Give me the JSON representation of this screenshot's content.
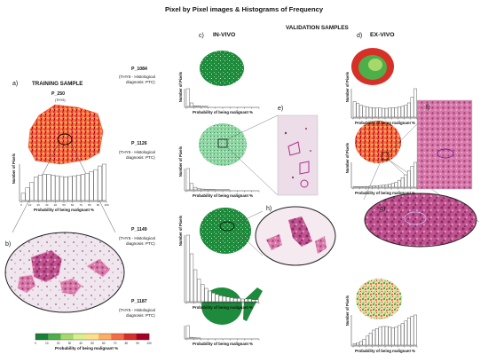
{
  "figure": {
    "title": "Pixel by Pixel images & Histograms of Frequency",
    "validation_title": "VALIDATION SAMPLES",
    "training_title": "TRAINING SAMPLE",
    "col_invivo": "IN-VIVO",
    "col_exvivo": "EX-VIVO",
    "panel_a": "a)",
    "panel_b": "b)",
    "panel_c": "c)",
    "panel_d": "d)",
    "panel_e": "e)",
    "panel_f": "f)",
    "panel_g": "g)",
    "panel_h": "h)",
    "ylabel": "Number of Pixels",
    "xlabel": "Probability of being malignant %",
    "colorbar_label": "Probability of being malignant %",
    "colorbar_colors": [
      "#1a7f37",
      "#4daf4a",
      "#a6d96a",
      "#d9ef8b",
      "#fee08b",
      "#fdae61",
      "#f46d43",
      "#d73027",
      "#a50026"
    ]
  },
  "samples": [
    {
      "id": "P_250",
      "diag": "(THY5)"
    },
    {
      "id": "P_1084",
      "diag_line1": "(THY5 - Histological",
      "diag_line2": "diagnosis: PTC)"
    },
    {
      "id": "P_1126",
      "diag_line1": "(THY5 - Histological",
      "diag_line2": "diagnosis: PTC)"
    },
    {
      "id": "P_1149",
      "diag_line1": "(THY5 - Histological",
      "diag_line2": "diagnosis: PTC)"
    },
    {
      "id": "P_1187",
      "diag_line1": "(THY5 - Histological",
      "diag_line2": "diagnosis: PTC)"
    }
  ],
  "chart_data": [
    {
      "type": "bar",
      "name": "training-P_250",
      "xlabel": "Probability of being malignant %",
      "ylabel": "Number of Pixels",
      "xlim": [
        0,
        100
      ],
      "x_ticks": [
        "0",
        "10",
        "20",
        "30",
        "40",
        "50",
        "60",
        "70",
        "80",
        "90",
        "100"
      ],
      "values": [
        0.2,
        0.35,
        0.5,
        0.65,
        0.7,
        0.72,
        0.72,
        0.7,
        0.68,
        0.66,
        0.65,
        0.66,
        0.68,
        0.7,
        0.72,
        0.75,
        0.8,
        0.85,
        0.95,
        1.0
      ]
    },
    {
      "type": "bar",
      "name": "invivo-P_1084",
      "xlabel": "Probability of being malignant %",
      "ylabel": "Number of Pixels",
      "xlim": [
        0,
        100
      ],
      "values": [
        1.0,
        0.2,
        0.04,
        0.02,
        0.01,
        0.01,
        0,
        0,
        0,
        0,
        0,
        0,
        0,
        0,
        0,
        0,
        0,
        0,
        0,
        0
      ]
    },
    {
      "type": "bar",
      "name": "invivo-P_1126",
      "xlabel": "Probability of being malignant %",
      "ylabel": "Number of Pixels",
      "xlim": [
        0,
        100
      ],
      "values": [
        1.0,
        0.3,
        0.12,
        0.06,
        0.04,
        0.03,
        0.02,
        0.02,
        0.01,
        0.01,
        0.01,
        0.01,
        0,
        0,
        0,
        0,
        0,
        0,
        0,
        0
      ]
    },
    {
      "type": "bar",
      "name": "invivo-P_1149",
      "xlabel": "Probability of being malignant %",
      "ylabel": "Number of Pixels",
      "xlim": [
        0,
        100
      ],
      "values": [
        1.0,
        0.72,
        0.48,
        0.34,
        0.26,
        0.2,
        0.16,
        0.13,
        0.11,
        0.09,
        0.08,
        0.07,
        0.06,
        0.05,
        0.05,
        0.04,
        0.04,
        0.04,
        0.03,
        0.03
      ]
    },
    {
      "type": "bar",
      "name": "invivo-P_1187",
      "xlabel": "Probability of being malignant %",
      "ylabel": "Number of Pixels",
      "xlim": [
        0,
        100
      ],
      "values": [
        1.0,
        0.06,
        0.02,
        0.01,
        0,
        0,
        0,
        0,
        0,
        0,
        0,
        0,
        0,
        0,
        0,
        0,
        0,
        0,
        0,
        0
      ]
    },
    {
      "type": "bar",
      "name": "exvivo-P_1084",
      "xlabel": "Probability of being malignant %",
      "ylabel": "Number of Pixels",
      "xlim": [
        0,
        100
      ],
      "values": [
        0.55,
        0.48,
        0.42,
        0.38,
        0.36,
        0.34,
        0.33,
        0.32,
        0.32,
        0.31,
        0.31,
        0.32,
        0.33,
        0.34,
        0.36,
        0.38,
        0.42,
        0.5,
        0.7,
        1.0
      ]
    },
    {
      "type": "bar",
      "name": "exvivo-P_1126",
      "xlabel": "Probability of being malignant %",
      "ylabel": "Number of Pixels",
      "xlim": [
        0,
        100
      ],
      "values": [
        0.02,
        0.02,
        0.02,
        0.03,
        0.03,
        0.04,
        0.05,
        0.06,
        0.07,
        0.08,
        0.1,
        0.12,
        0.15,
        0.2,
        0.28,
        0.38,
        0.5,
        0.65,
        0.85,
        1.0
      ]
    },
    {
      "type": "bar",
      "name": "exvivo-P_1187",
      "xlabel": "Probability of being malignant %",
      "ylabel": "Number of Pixels",
      "xlim": [
        0,
        100
      ],
      "values": [
        0.05,
        0.08,
        0.12,
        0.2,
        0.3,
        0.4,
        0.5,
        0.55,
        0.6,
        0.62,
        0.62,
        0.6,
        0.58,
        0.6,
        0.65,
        0.72,
        0.8,
        0.9,
        0.96,
        1.0
      ]
    }
  ]
}
